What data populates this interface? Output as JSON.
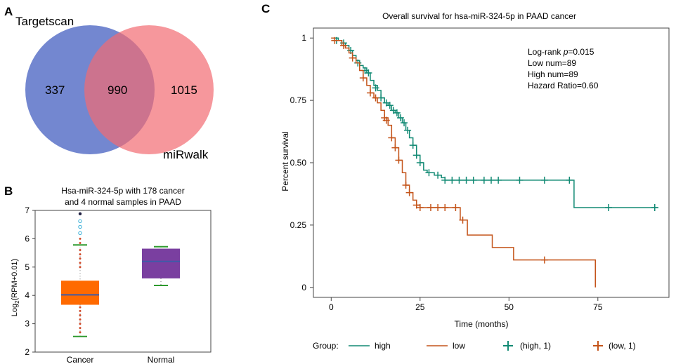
{
  "panel_labels": {
    "a": "A",
    "b": "B",
    "c": "C"
  },
  "colors": {
    "venn_left": "#5b72c8",
    "venn_right": "#f26b72",
    "box_cancer": "#ff6a00",
    "box_normal": "#7a3fa0",
    "median": "#3f5aa8",
    "whisker": "#2e9a2e",
    "outlier_dot": "#d04a2a",
    "outlier_circle": "#3ab0d8",
    "outlier_dark": "#222244",
    "km_high": "#128a74",
    "km_low": "#c4541a"
  },
  "chart_data": [
    {
      "type": "venn",
      "sets": [
        {
          "name": "Targetscan",
          "only": 337
        },
        {
          "name": "miRwalk",
          "only": 1015
        }
      ],
      "intersection": 990
    },
    {
      "type": "box",
      "title": "Hsa-miR-324-5p with 178 cancer",
      "title2": "and 4 normal samples in PAAD",
      "ylabel": "Log",
      "ylabel_sub": "2",
      "ylabel_rest": "(RPM+0.01)",
      "ylim": [
        2,
        7
      ],
      "yticks": [
        "2",
        "3",
        "4",
        "5",
        "6",
        "7"
      ],
      "groups": [
        {
          "name": "Cancer",
          "whisker_low": 2.55,
          "q1": 3.67,
          "median": 4.02,
          "q3": 4.52,
          "whisker_high": 5.78,
          "outliers_low": [
            2.7,
            2.85,
            3.0,
            3.15,
            3.3,
            3.45,
            3.58
          ],
          "outliers_high": [
            5.0,
            5.15,
            5.3,
            5.45,
            5.6,
            5.85,
            6.0
          ],
          "outliers_circle": [
            6.2,
            6.42,
            6.62
          ],
          "outliers_dark": [
            6.88
          ]
        },
        {
          "name": "Normal",
          "whisker_low": 4.35,
          "q1": 4.6,
          "median": 5.2,
          "q3": 5.65,
          "whisker_high": 5.72
        }
      ]
    },
    {
      "type": "line",
      "title": "Overall survival for hsa-miR-324-5p in PAAD cancer",
      "xlabel": "Time (months)",
      "ylabel": "Percent survival",
      "xlim": [
        -5,
        95
      ],
      "ylim": [
        -0.04,
        1.04
      ],
      "xticks": [
        0,
        25,
        50,
        75
      ],
      "xtick_labels": [
        "0",
        "25",
        "50",
        "75"
      ],
      "yticks": [
        0,
        0.25,
        0.5,
        0.75,
        1
      ],
      "ytick_labels": [
        "0",
        "0.25",
        "0.50",
        "0.75",
        "1"
      ],
      "stats": [
        "Log-rank",
        "p",
        "=0.015",
        "Low num=89",
        "High num=89",
        "Hazard Ratio=0.60"
      ],
      "legend": {
        "title": "Group:",
        "items": [
          "high",
          "low",
          "(high, 1)",
          "(low, 1)"
        ]
      },
      "series": [
        {
          "name": "high",
          "steps": [
            [
              0,
              1
            ],
            [
              2,
              0.99
            ],
            [
              3,
              0.98
            ],
            [
              4,
              0.97
            ],
            [
              5,
              0.95
            ],
            [
              6,
              0.93
            ],
            [
              7,
              0.91
            ],
            [
              8,
              0.89
            ],
            [
              9,
              0.88
            ],
            [
              10,
              0.86
            ],
            [
              11,
              0.83
            ],
            [
              12,
              0.81
            ],
            [
              13,
              0.79
            ],
            [
              14,
              0.76
            ],
            [
              15,
              0.74
            ],
            [
              16,
              0.73
            ],
            [
              17,
              0.71
            ],
            [
              18,
              0.7
            ],
            [
              19,
              0.68
            ],
            [
              20,
              0.66
            ],
            [
              21,
              0.63
            ],
            [
              22,
              0.6
            ],
            [
              23,
              0.57
            ],
            [
              24,
              0.53
            ],
            [
              25,
              0.5
            ],
            [
              26,
              0.47
            ],
            [
              27,
              0.46
            ],
            [
              29,
              0.45
            ],
            [
              31,
              0.44
            ],
            [
              32,
              0.43
            ],
            [
              68,
              0.43
            ],
            [
              68.3,
              0.32
            ],
            [
              92,
              0.32
            ]
          ],
          "censor": [
            [
              1.5,
              0.99
            ],
            [
              3.5,
              0.98
            ],
            [
              5.5,
              0.95
            ],
            [
              7.5,
              0.9
            ],
            [
              9.5,
              0.87
            ],
            [
              10.5,
              0.86
            ],
            [
              12.5,
              0.8
            ],
            [
              14,
              0.76
            ],
            [
              15.5,
              0.74
            ],
            [
              16.5,
              0.73
            ],
            [
              17.5,
              0.71
            ],
            [
              18.5,
              0.7
            ],
            [
              19.5,
              0.68
            ],
            [
              20.5,
              0.66
            ],
            [
              21.5,
              0.63
            ],
            [
              23,
              0.57
            ],
            [
              24,
              0.53
            ],
            [
              25,
              0.5
            ],
            [
              27.5,
              0.46
            ],
            [
              30,
              0.45
            ],
            [
              32,
              0.43
            ],
            [
              34,
              0.43
            ],
            [
              36,
              0.43
            ],
            [
              38,
              0.43
            ],
            [
              40,
              0.43
            ],
            [
              43,
              0.43
            ],
            [
              45,
              0.43
            ],
            [
              47,
              0.43
            ],
            [
              53,
              0.43
            ],
            [
              60,
              0.43
            ],
            [
              67,
              0.43
            ],
            [
              78,
              0.32
            ],
            [
              91,
              0.32
            ]
          ]
        },
        {
          "name": "low",
          "steps": [
            [
              0,
              1
            ],
            [
              1,
              0.99
            ],
            [
              3,
              0.97
            ],
            [
              4,
              0.96
            ],
            [
              5,
              0.94
            ],
            [
              6,
              0.92
            ],
            [
              7,
              0.9
            ],
            [
              8,
              0.87
            ],
            [
              9,
              0.84
            ],
            [
              10,
              0.81
            ],
            [
              11,
              0.78
            ],
            [
              12,
              0.76
            ],
            [
              13,
              0.74
            ],
            [
              14,
              0.71
            ],
            [
              15,
              0.68
            ],
            [
              16,
              0.65
            ],
            [
              17,
              0.6
            ],
            [
              18,
              0.56
            ],
            [
              19,
              0.51
            ],
            [
              20,
              0.46
            ],
            [
              21,
              0.41
            ],
            [
              22,
              0.38
            ],
            [
              23,
              0.35
            ],
            [
              24,
              0.33
            ],
            [
              25,
              0.32
            ],
            [
              36,
              0.32
            ],
            [
              36.3,
              0.27
            ],
            [
              38,
              0.27
            ],
            [
              38.3,
              0.21
            ],
            [
              45,
              0.21
            ],
            [
              45.3,
              0.16
            ],
            [
              51,
              0.16
            ],
            [
              51.3,
              0.11
            ],
            [
              74,
              0.11
            ],
            [
              74.3,
              0
            ]
          ],
          "censor": [
            [
              1,
              0.99
            ],
            [
              3.5,
              0.97
            ],
            [
              6,
              0.92
            ],
            [
              9,
              0.84
            ],
            [
              11,
              0.78
            ],
            [
              12.5,
              0.76
            ],
            [
              15,
              0.68
            ],
            [
              15.5,
              0.67
            ],
            [
              17,
              0.6
            ],
            [
              18,
              0.56
            ],
            [
              19,
              0.51
            ],
            [
              21,
              0.41
            ],
            [
              22,
              0.38
            ],
            [
              24,
              0.33
            ],
            [
              25,
              0.32
            ],
            [
              28,
              0.32
            ],
            [
              30,
              0.32
            ],
            [
              32,
              0.32
            ],
            [
              35,
              0.32
            ],
            [
              37,
              0.27
            ],
            [
              60,
              0.11
            ]
          ]
        }
      ]
    }
  ]
}
